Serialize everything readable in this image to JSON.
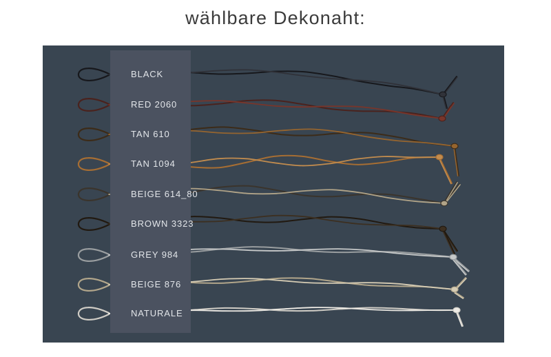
{
  "title": "wählbare Dekonaht:",
  "panel": {
    "background": "#394551",
    "band_background": "#4b5260",
    "label_color": "#e2e5e9",
    "rows": [
      {
        "label": "BLACK",
        "color": "#17181c",
        "color2": "#303239"
      },
      {
        "label": "RED 2060",
        "color": "#4a221d",
        "color2": "#79352a"
      },
      {
        "label": "TAN 610",
        "color": "#3c2b18",
        "color2": "#96652f"
      },
      {
        "label": "TAN 1094",
        "color": "#a76e33",
        "color2": "#c28c4e"
      },
      {
        "label": "BEIGE 614_80",
        "color": "#3a342c",
        "color2": "#b1a488"
      },
      {
        "label": "BROWN 3323",
        "color": "#211910",
        "color2": "#3c2f20"
      },
      {
        "label": "GREY 984",
        "color": "#9a9ea0",
        "color2": "#c7c9c9"
      },
      {
        "label": "BEIGE 876",
        "color": "#b2a68b",
        "color2": "#d6ccb4"
      },
      {
        "label": "NATURALE",
        "color": "#cfccc5",
        "color2": "#edeae4"
      }
    ]
  }
}
